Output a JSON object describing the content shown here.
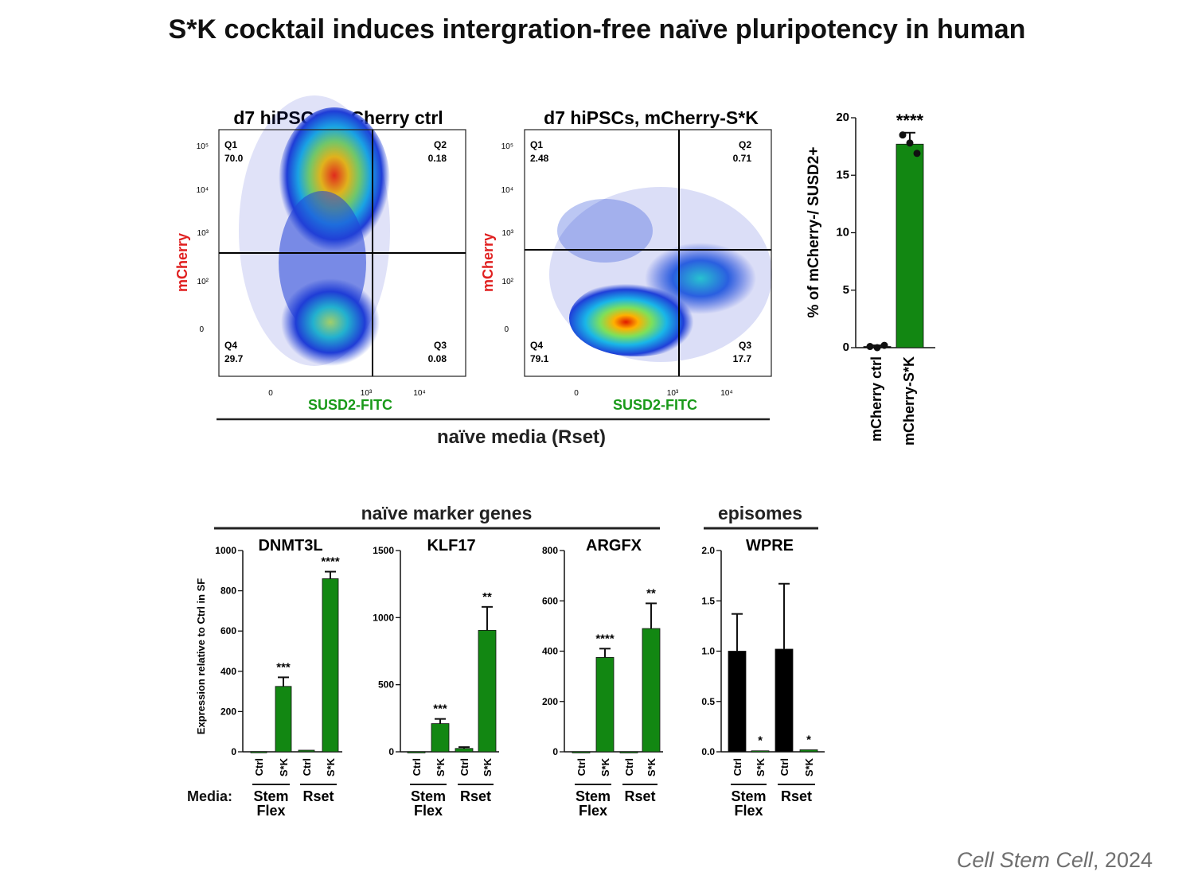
{
  "title": "S*K cocktail induces intergration-free naïve pluripotency in human",
  "citation": {
    "journal": "Cell Stem Cell",
    "sep": ", ",
    "year": "2024"
  },
  "flow": {
    "group_label": "naïve media (Rset)",
    "x_label": "SUSD2-FITC",
    "y_label": "mCherry",
    "y_ticks": [
      "10⁵",
      "10⁴",
      "10³",
      "10²",
      "0"
    ],
    "x_ticks": [
      "0",
      "10³",
      "10⁴"
    ],
    "panels": [
      {
        "title": "d7 hiPSCs, mCherry ctrl",
        "quadrants": [
          {
            "name": "Q1",
            "value": "70.0"
          },
          {
            "name": "Q2",
            "value": "0.18"
          },
          {
            "name": "Q3",
            "value": "0.08"
          },
          {
            "name": "Q4",
            "value": "29.7"
          }
        ]
      },
      {
        "title": "d7 hiPSCs, mCherry-S*K",
        "quadrants": [
          {
            "name": "Q1",
            "value": "2.48"
          },
          {
            "name": "Q2",
            "value": "0.71"
          },
          {
            "name": "Q3",
            "value": "17.7"
          },
          {
            "name": "Q4",
            "value": "79.1"
          }
        ]
      }
    ]
  },
  "section_labels": {
    "markers": "naïve marker genes",
    "episomes": "episomes",
    "media_label": "Media:"
  },
  "chart_data": [
    {
      "type": "bar",
      "title": "",
      "ylabel": "% of mCherry-/ SUSD2+",
      "categories": [
        "mCherry ctrl",
        "mCherry-S*K"
      ],
      "values": [
        0.1,
        17.7
      ],
      "errors": [
        0.1,
        1.0
      ],
      "points": [
        [
          0.1,
          0.0,
          0.2
        ],
        [
          18.5,
          17.8,
          16.9
        ]
      ],
      "ylim": [
        0,
        20
      ],
      "yticks": [
        "0",
        "5",
        "10",
        "15",
        "20"
      ],
      "significance": [
        "",
        "****"
      ],
      "colors": [
        "#000000",
        "#128712"
      ]
    },
    {
      "type": "bar",
      "title": "DNMT3L",
      "ylabel": "Expression relative to Ctrl in SF",
      "categories": [
        "Ctrl",
        "S*K",
        "Ctrl",
        "S*K"
      ],
      "media": [
        "Stem Flex",
        "Rset"
      ],
      "values": [
        1,
        325,
        8,
        860
      ],
      "errors": [
        0,
        45,
        0,
        35
      ],
      "ylim": [
        0,
        1000
      ],
      "yticks": [
        "0",
        "200",
        "400",
        "600",
        "800",
        "1000"
      ],
      "significance": [
        "",
        "***",
        "",
        "****"
      ],
      "colors": [
        "#128712",
        "#128712",
        "#128712",
        "#128712"
      ]
    },
    {
      "type": "bar",
      "title": "KLF17",
      "categories": [
        "Ctrl",
        "S*K",
        "Ctrl",
        "S*K"
      ],
      "media": [
        "Stem Flex",
        "Rset"
      ],
      "values": [
        1,
        210,
        25,
        905
      ],
      "errors": [
        0,
        35,
        10,
        175
      ],
      "ylim": [
        0,
        1500
      ],
      "yticks": [
        "0",
        "500",
        "1000",
        "1500"
      ],
      "significance": [
        "",
        "***",
        "",
        "**"
      ],
      "colors": [
        "#128712",
        "#128712",
        "#128712",
        "#128712"
      ]
    },
    {
      "type": "bar",
      "title": "ARGFX",
      "categories": [
        "Ctrl",
        "S*K",
        "Ctrl",
        "S*K"
      ],
      "media": [
        "Stem Flex",
        "Rset"
      ],
      "values": [
        0.5,
        375,
        0.5,
        490
      ],
      "errors": [
        0,
        35,
        0,
        100
      ],
      "ylim": [
        0,
        800
      ],
      "yticks": [
        "0",
        "200",
        "400",
        "600",
        "800"
      ],
      "significance": [
        "",
        "****",
        "",
        "**"
      ],
      "colors": [
        "#128712",
        "#128712",
        "#128712",
        "#128712"
      ]
    },
    {
      "type": "bar",
      "title": "WPRE",
      "categories": [
        "Ctrl",
        "S*K",
        "Ctrl",
        "S*K"
      ],
      "media": [
        "Stem Flex",
        "Rset"
      ],
      "values": [
        1.0,
        0.01,
        1.02,
        0.02
      ],
      "errors": [
        0.37,
        0,
        0.65,
        0
      ],
      "ylim": [
        0,
        2.0
      ],
      "yticks": [
        "0.0",
        "0.5",
        "1.0",
        "1.5",
        "2.0"
      ],
      "significance": [
        "",
        "*",
        "",
        "*"
      ],
      "colors": [
        "#000000",
        "#128712",
        "#000000",
        "#128712"
      ]
    }
  ]
}
